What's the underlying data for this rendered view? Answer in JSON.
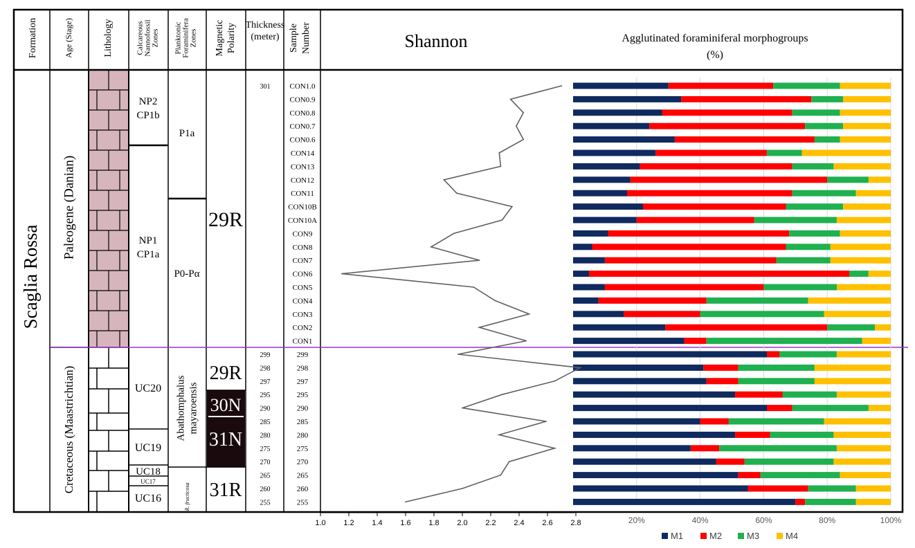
{
  "headers": {
    "formation": "Formation",
    "age": "Age (Stage)",
    "lithology": "Lithology",
    "nanno": [
      "Calcareous",
      "Nannofossil",
      "Zones"
    ],
    "plank": [
      "Planktonic",
      "Foraminifera",
      "Zones"
    ],
    "magnetic": [
      "Magnetic",
      "Polarity"
    ],
    "thickness": [
      "Thickness",
      "(meter)"
    ],
    "sample": [
      "Sample",
      "Number"
    ],
    "shannon": "Shannon",
    "morpho": [
      "Agglutinated foraminiferal morphogroups",
      "(%)"
    ]
  },
  "formation_name": "Scaglia Rossa",
  "ages": {
    "paleogene": "Paleogene (Danian)",
    "cretaceous": "Cretaceous (Maastrichtian)"
  },
  "nanno_zones": {
    "np2": "NP2",
    "cp1b": "CP1b",
    "np1": "NP1",
    "cp1a": "CP1a",
    "uc20": "UC20",
    "uc19": "UC19",
    "uc18": "UC18",
    "uc17": "UC17",
    "uc16": "UC16"
  },
  "plank_zones": {
    "p1a": "P1a",
    "p0": "P0-Pα",
    "abatho": [
      "Abathomphalus",
      "mayaroensis"
    ],
    "fructi": "R. fructicosa"
  },
  "polarity": {
    "c29r_top": "29R",
    "c29r_low": "29R",
    "c30n": "30N",
    "c31n": "31N",
    "c31r": "31R"
  },
  "chart_data": [
    {
      "type": "line",
      "title": "Shannon",
      "xlabel": "",
      "ylabel": "",
      "xlim": [
        1.0,
        2.8
      ],
      "xticks": [
        "1.0",
        "1.2",
        "1.4",
        "1.6",
        "1.8",
        "2.0",
        "2.2",
        "2.4",
        "2.6",
        "2.8"
      ],
      "grid": false,
      "samples": [
        "CON1.0",
        "CON0.9",
        "CON0.8",
        "CON0.7",
        "CON0.6",
        "CON14",
        "CON13",
        "CON12",
        "CON11",
        "CON10B",
        "CON10A",
        "CON9",
        "CON8",
        "CON7",
        "CON6",
        "CON5",
        "CON4",
        "CON3",
        "CON2",
        "CON1",
        "299",
        "298",
        "297",
        "295",
        "290",
        "285",
        "280",
        "275",
        "270",
        "265",
        "260",
        "255"
      ],
      "thickness_labels": [
        "301",
        "",
        "",
        "",
        "",
        "",
        "",
        "",
        "",
        "",
        "",
        "",
        "",
        "",
        "",
        "",
        "",
        "",
        "",
        "",
        "299",
        "298",
        "297",
        "295",
        "290",
        "285",
        "280",
        "275",
        "270",
        "265",
        "260",
        "255"
      ],
      "values": [
        2.7,
        2.34,
        2.43,
        2.38,
        2.43,
        2.26,
        2.27,
        1.87,
        1.96,
        2.35,
        2.28,
        1.94,
        1.78,
        2.12,
        1.15,
        2.08,
        2.23,
        2.47,
        2.12,
        2.45,
        1.97,
        2.83,
        2.65,
        2.28,
        2.0,
        2.59,
        2.26,
        2.65,
        2.33,
        2.27,
        2.0,
        1.6
      ]
    },
    {
      "type": "bar",
      "orientation": "horizontal",
      "stacked": true,
      "title": "Agglutinated foraminiferal morphogroups (%)",
      "xlim": [
        0,
        100
      ],
      "xticks": [
        "20%",
        "40%",
        "60%",
        "80%",
        "100%"
      ],
      "grid": true,
      "legend": "bottom",
      "categories": [
        "CON1.0",
        "CON0.9",
        "CON0.8",
        "CON0.7",
        "CON0.6",
        "CON14",
        "CON13",
        "CON12",
        "CON11",
        "CON10B",
        "CON10A",
        "CON9",
        "CON8",
        "CON7",
        "CON6",
        "CON5",
        "CON4",
        "CON3",
        "CON2",
        "CON1",
        "299",
        "298",
        "297",
        "295",
        "290",
        "285",
        "280",
        "275",
        "270",
        "265",
        "260",
        "255"
      ],
      "series": [
        {
          "name": "M1",
          "color": "#0f2a5e",
          "values": [
            30,
            34,
            28,
            24,
            32,
            26,
            21,
            18,
            17,
            22,
            20,
            11,
            6,
            10,
            5,
            10,
            8,
            16,
            29,
            35,
            61,
            41,
            42,
            51,
            61,
            40,
            51,
            37,
            45,
            52,
            55,
            70
          ]
        },
        {
          "name": "M2",
          "color": "#ff0000",
          "values": [
            33,
            41,
            41,
            49,
            44,
            35,
            48,
            62,
            52,
            45,
            37,
            57,
            61,
            54,
            82,
            50,
            34,
            24,
            51,
            7,
            4,
            11,
            10,
            15,
            8,
            9,
            11,
            9,
            9,
            7,
            19,
            3
          ]
        },
        {
          "name": "M3",
          "color": "#20b050",
          "values": [
            21,
            10,
            15,
            12,
            8,
            11,
            13,
            13,
            20,
            18,
            26,
            16,
            14,
            17,
            6,
            23,
            32,
            39,
            15,
            49,
            18,
            24,
            24,
            17,
            24,
            30,
            20,
            37,
            28,
            25,
            15,
            16
          ]
        },
        {
          "name": "M4",
          "color": "#ffc000",
          "values": [
            16,
            15,
            16,
            15,
            16,
            28,
            18,
            7,
            11,
            15,
            17,
            16,
            19,
            19,
            7,
            17,
            26,
            21,
            5,
            9,
            17,
            24,
            24,
            17,
            7,
            21,
            18,
            17,
            18,
            16,
            11,
            11
          ]
        }
      ]
    }
  ]
}
